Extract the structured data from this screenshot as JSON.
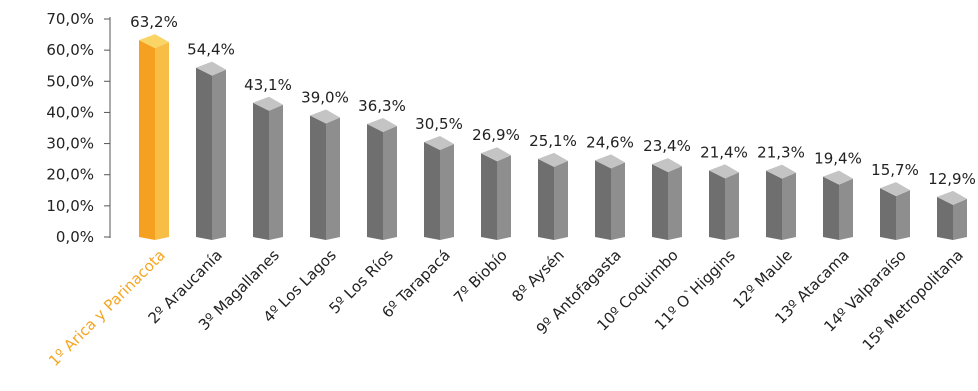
{
  "chart_data": {
    "type": "bar",
    "title": "",
    "xlabel": "",
    "ylabel": "",
    "ylim": [
      0,
      70
    ],
    "yticks": [
      "0,0%",
      "10,0%",
      "20,0%",
      "30,0%",
      "40,0%",
      "50,0%",
      "60,0%",
      "70,0%"
    ],
    "grid": false,
    "bar_style": "3d",
    "colors": {
      "bar_front": "#6f6f6f",
      "bar_side": "#8e8e8e",
      "bar_top": "#c4c4c4",
      "highlight_front": "#f5a020",
      "highlight_side": "#f8bd45",
      "highlight_top": "#fbd466",
      "highlight_label": "#f5a623",
      "text": "#222222"
    },
    "highlight_index": 0,
    "categories": [
      "1º Arica y Parinacota",
      "2º Araucanía",
      "3º Magallanes",
      "4º Los Lagos",
      "5º Los Ríos",
      "6º Tarapacá",
      "7º Biobío",
      "8º Aysén",
      "9º Antofagasta",
      "10º Coquimbo",
      "11º O`Higgins",
      "12º Maule",
      "13º Atacama",
      "14º Valparaíso",
      "15º Metropolitana"
    ],
    "values": [
      63.2,
      54.4,
      43.1,
      39.0,
      36.3,
      30.5,
      26.9,
      25.1,
      24.6,
      23.4,
      21.4,
      21.3,
      19.4,
      15.7,
      12.9
    ],
    "value_labels": [
      "63,2%",
      "54,4%",
      "43,1%",
      "39,0%",
      "36,3%",
      "30,5%",
      "26,9%",
      "25,1%",
      "24,6%",
      "23,4%",
      "21,4%",
      "21,3%",
      "19,4%",
      "15,7%",
      "12,9%"
    ]
  }
}
